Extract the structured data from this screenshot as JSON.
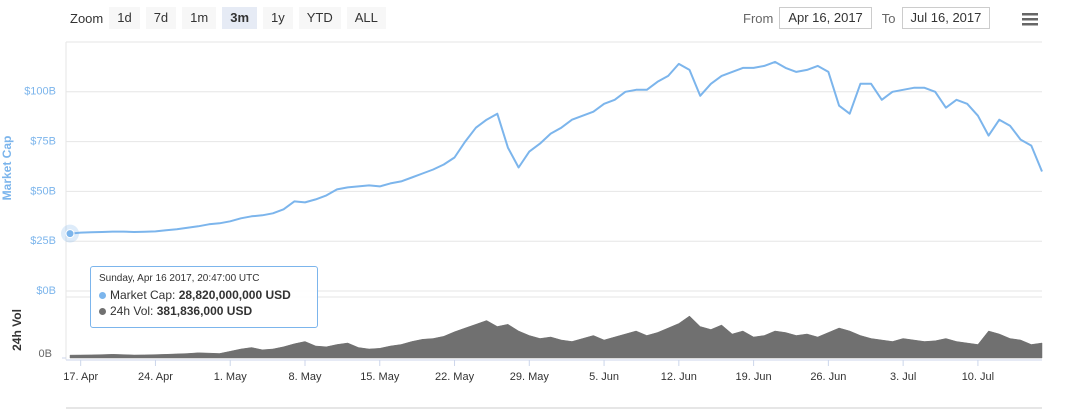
{
  "controls": {
    "zoom_label": "Zoom",
    "buttons": [
      "1d",
      "7d",
      "1m",
      "3m",
      "1y",
      "YTD",
      "ALL"
    ],
    "selected": "3m",
    "from_label": "From",
    "from": "Apr 16, 2017",
    "to_label": "To",
    "to": "Jul 16, 2017"
  },
  "tooltip": {
    "header": "Sunday, Apr 16 2017, 20:47:00 UTC",
    "rows": [
      {
        "label": "Market Cap:",
        "value": "28,820,000,000 USD"
      },
      {
        "label": "24h Vol:",
        "value": "381,836,000 USD"
      }
    ]
  },
  "chart_data": {
    "type": "line",
    "y_label": "Market Cap",
    "y2_label": "24h Vol",
    "x": [
      "16. Apr",
      "17. Apr",
      "18. Apr",
      "19. Apr",
      "20. Apr",
      "21. Apr",
      "22. Apr",
      "23. Apr",
      "24. Apr",
      "25. Apr",
      "26. Apr",
      "27. Apr",
      "28. Apr",
      "29. Apr",
      "30. Apr",
      "1. May",
      "2. May",
      "3. May",
      "4. May",
      "5. May",
      "6. May",
      "7. May",
      "8. May",
      "9. May",
      "10. May",
      "11. May",
      "12. May",
      "13. May",
      "14. May",
      "15. May",
      "16. May",
      "17. May",
      "18. May",
      "19. May",
      "20. May",
      "21. May",
      "22. May",
      "23. May",
      "24. May",
      "25. May",
      "26. May",
      "27. May",
      "28. May",
      "29. May",
      "30. May",
      "31. May",
      "1. Jun",
      "2. Jun",
      "3. Jun",
      "4. Jun",
      "5. Jun",
      "6. Jun",
      "7. Jun",
      "8. Jun",
      "9. Jun",
      "10. Jun",
      "11. Jun",
      "12. Jun",
      "13. Jun",
      "14. Jun",
      "15. Jun",
      "16. Jun",
      "17. Jun",
      "18. Jun",
      "19. Jun",
      "20. Jun",
      "21. Jun",
      "22. Jun",
      "23. Jun",
      "24. Jun",
      "25. Jun",
      "26. Jun",
      "27. Jun",
      "28. Jun",
      "29. Jun",
      "30. Jun",
      "1. Jul",
      "2. Jul",
      "3. Jul",
      "4. Jul",
      "5. Jul",
      "6. Jul",
      "7. Jul",
      "8. Jul",
      "9. Jul",
      "10. Jul",
      "11. Jul",
      "12. Jul",
      "13. Jul",
      "14. Jul",
      "15. Jul",
      "16. Jul"
    ],
    "xticks": [
      "17. Apr",
      "24. Apr",
      "1. May",
      "8. May",
      "15. May",
      "22. May",
      "29. May",
      "5. Jun",
      "12. Jun",
      "19. Jun",
      "26. Jun",
      "3. Jul",
      "10. Jul"
    ],
    "series": [
      {
        "name": "Market Cap",
        "color": "#7cb5ec",
        "values": [
          28.82,
          29.3,
          29.5,
          29.6,
          29.8,
          29.8,
          29.6,
          29.7,
          29.9,
          30.5,
          31,
          31.8,
          32.5,
          33.5,
          34,
          35,
          36.5,
          37.5,
          38,
          39,
          41,
          45,
          44.5,
          46,
          48,
          51,
          52,
          52.5,
          53,
          52.5,
          54,
          55,
          57,
          59,
          61,
          63.5,
          67,
          75,
          82,
          86,
          89,
          72,
          62,
          70,
          74,
          79,
          82,
          86,
          88,
          90,
          94,
          96,
          100,
          101,
          101,
          105,
          108,
          114,
          111,
          98,
          104,
          108,
          110,
          112,
          112,
          113,
          115,
          112,
          110,
          111,
          113,
          110,
          93,
          89,
          104,
          104,
          96,
          100,
          101,
          102,
          102,
          100,
          92,
          96,
          94,
          88,
          78,
          86,
          83,
          76,
          73,
          60
        ]
      },
      {
        "name": "24h Vol",
        "color": "#707070",
        "axis": "y2",
        "values": [
          0.381836,
          0.4,
          0.42,
          0.45,
          0.5,
          0.45,
          0.4,
          0.42,
          0.45,
          0.5,
          0.55,
          0.6,
          0.7,
          0.65,
          0.6,
          0.9,
          1.2,
          1.4,
          1.1,
          1.2,
          1.5,
          1.9,
          2.2,
          1.6,
          1.5,
          1.8,
          2.0,
          1.4,
          1.2,
          1.3,
          1.6,
          1.8,
          2.2,
          2.5,
          2.6,
          2.9,
          3.5,
          4.0,
          4.5,
          5.0,
          4.2,
          4.5,
          3.6,
          3.0,
          2.6,
          2.8,
          2.4,
          2.2,
          2.6,
          3.0,
          2.4,
          2.8,
          3.2,
          3.6,
          3.0,
          3.4,
          4.0,
          4.6,
          5.6,
          4.2,
          3.8,
          4.4,
          3.2,
          3.6,
          2.8,
          3.0,
          3.6,
          3.4,
          3.0,
          3.2,
          2.8,
          3.4,
          4.0,
          3.6,
          3.0,
          2.6,
          2.4,
          2.2,
          2.6,
          2.4,
          2.2,
          2.3,
          2.6,
          2.2,
          2.0,
          1.8,
          3.6,
          3.2,
          2.6,
          2.4,
          1.8,
          2.0
        ]
      }
    ],
    "ylim": [
      0,
      125
    ],
    "yticks": [
      {
        "value": 0,
        "label": "$0B"
      },
      {
        "value": 25,
        "label": "$25B"
      },
      {
        "value": 50,
        "label": "$50B"
      },
      {
        "value": 75,
        "label": "$75B"
      },
      {
        "value": 100,
        "label": "$100B"
      }
    ],
    "y2lim": [
      0,
      8
    ],
    "y2ticks": [
      {
        "value": 0,
        "label": "0B"
      }
    ],
    "grid": true
  }
}
